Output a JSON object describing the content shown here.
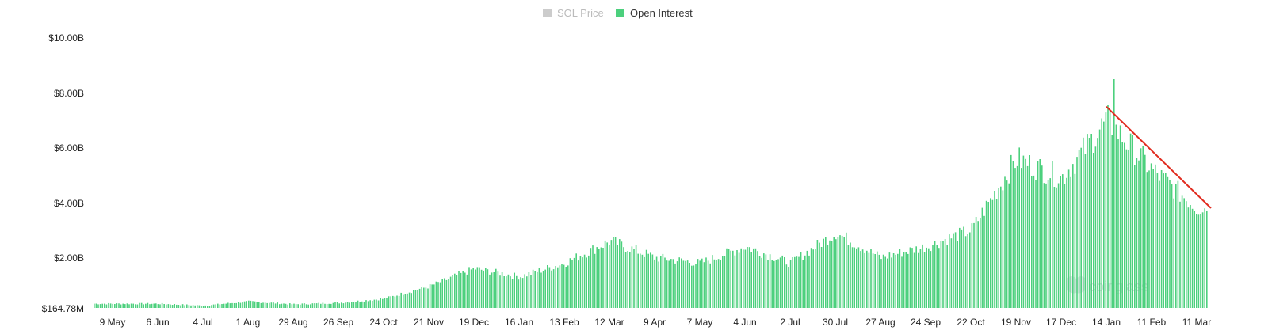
{
  "chart_data": {
    "type": "bar",
    "title": "",
    "legend": [
      {
        "name": "SOL Price",
        "color": "#cccccc",
        "active": false
      },
      {
        "name": "Open Interest",
        "color": "#4cd07d",
        "active": true
      }
    ],
    "legend_position": "top-center",
    "y_axis": {
      "ticks": [
        "$164.78M",
        "$2.00B",
        "$4.00B",
        "$6.00B",
        "$8.00B",
        "$10.00B"
      ],
      "tick_values": [
        0.16478,
        2,
        4,
        6,
        8,
        10
      ],
      "unit": "B",
      "ylim": [
        0.16478,
        10
      ]
    },
    "x_axis": {
      "ticks": [
        "9 May",
        "6 Jun",
        "4 Jul",
        "1 Aug",
        "29 Aug",
        "26 Sep",
        "24 Oct",
        "21 Nov",
        "19 Dec",
        "16 Jan",
        "13 Feb",
        "12 Mar",
        "9 Apr",
        "7 May",
        "4 Jun",
        "2 Jul",
        "30 Jul",
        "27 Aug",
        "24 Sep",
        "22 Oct",
        "19 Nov",
        "17 Dec",
        "14 Jan",
        "11 Feb",
        "11 Mar"
      ]
    },
    "grid": false,
    "bar_color": "#4cd07d",
    "series": [
      {
        "name": "Open Interest",
        "keypoints": [
          {
            "x": "9 May",
            "y": 0.32
          },
          {
            "x": "6 Jun",
            "y": 0.32
          },
          {
            "x": "4 Jul",
            "y": 0.25
          },
          {
            "x": "1 Aug",
            "y": 0.4
          },
          {
            "x": "29 Aug",
            "y": 0.3
          },
          {
            "x": "26 Sep",
            "y": 0.35
          },
          {
            "x": "24 Oct",
            "y": 0.5
          },
          {
            "x": "21 Nov",
            "y": 0.95
          },
          {
            "x": "19 Dec",
            "y": 1.6
          },
          {
            "x": "16 Jan",
            "y": 1.3
          },
          {
            "x": "13 Feb",
            "y": 1.8
          },
          {
            "x": "12 Mar",
            "y": 2.6
          },
          {
            "x": "9 Apr",
            "y": 2.0
          },
          {
            "x": "7 May",
            "y": 1.8
          },
          {
            "x": "4 Jun",
            "y": 2.4
          },
          {
            "x": "2 Jul",
            "y": 1.8
          },
          {
            "x": "30 Jul",
            "y": 2.9
          },
          {
            "x": "27 Aug",
            "y": 2.0
          },
          {
            "x": "24 Sep",
            "y": 2.4
          },
          {
            "x": "22 Oct",
            "y": 3.0
          },
          {
            "x": "19 Nov",
            "y": 5.6
          },
          {
            "x": "17 Dec",
            "y": 4.9
          },
          {
            "x": "14 Jan",
            "y": 7.0
          },
          {
            "x": "11 Feb",
            "y": 5.2
          },
          {
            "x": "11 Mar",
            "y": 3.8
          }
        ],
        "peak": {
          "x": "14 Jan",
          "y": 8.5
        }
      }
    ],
    "trend_line": {
      "color": "#e12b1f",
      "from": {
        "x": "14 Jan",
        "y": 7.5
      },
      "to": {
        "x": "11 Mar",
        "y": 3.8
      }
    },
    "watermark": "coinglass"
  }
}
